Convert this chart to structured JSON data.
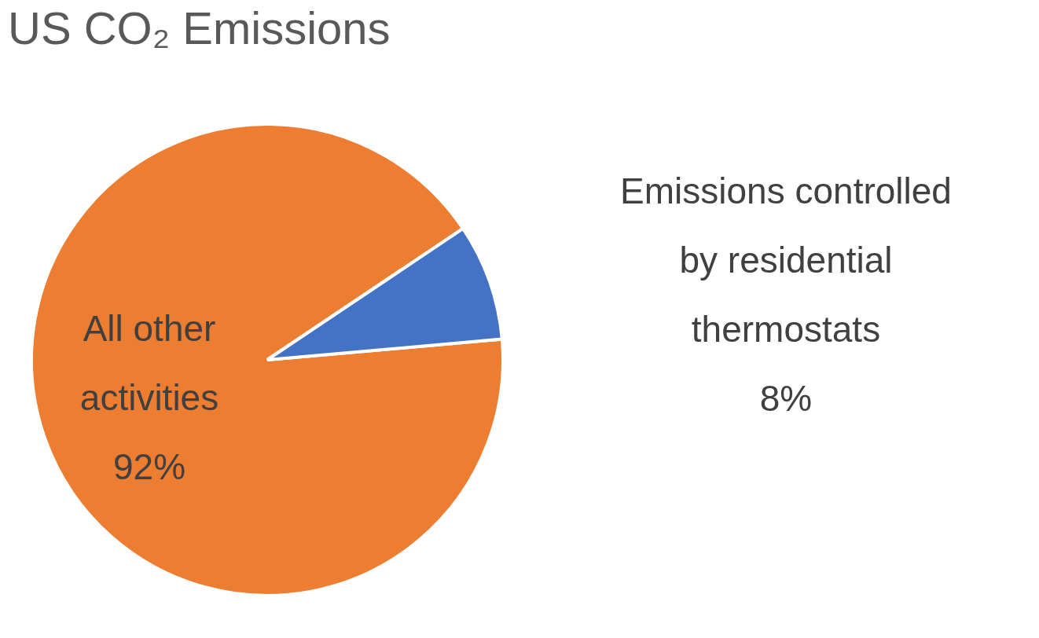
{
  "chart_data": {
    "type": "pie",
    "title": "US CO₂ Emissions",
    "categories": [
      "All other activities",
      "Emissions controlled by residential thermostats"
    ],
    "values": [
      92,
      8
    ],
    "colors": [
      "#ed7d31",
      "#4472c4"
    ],
    "value_labels": [
      "92%",
      "8%"
    ]
  }
}
